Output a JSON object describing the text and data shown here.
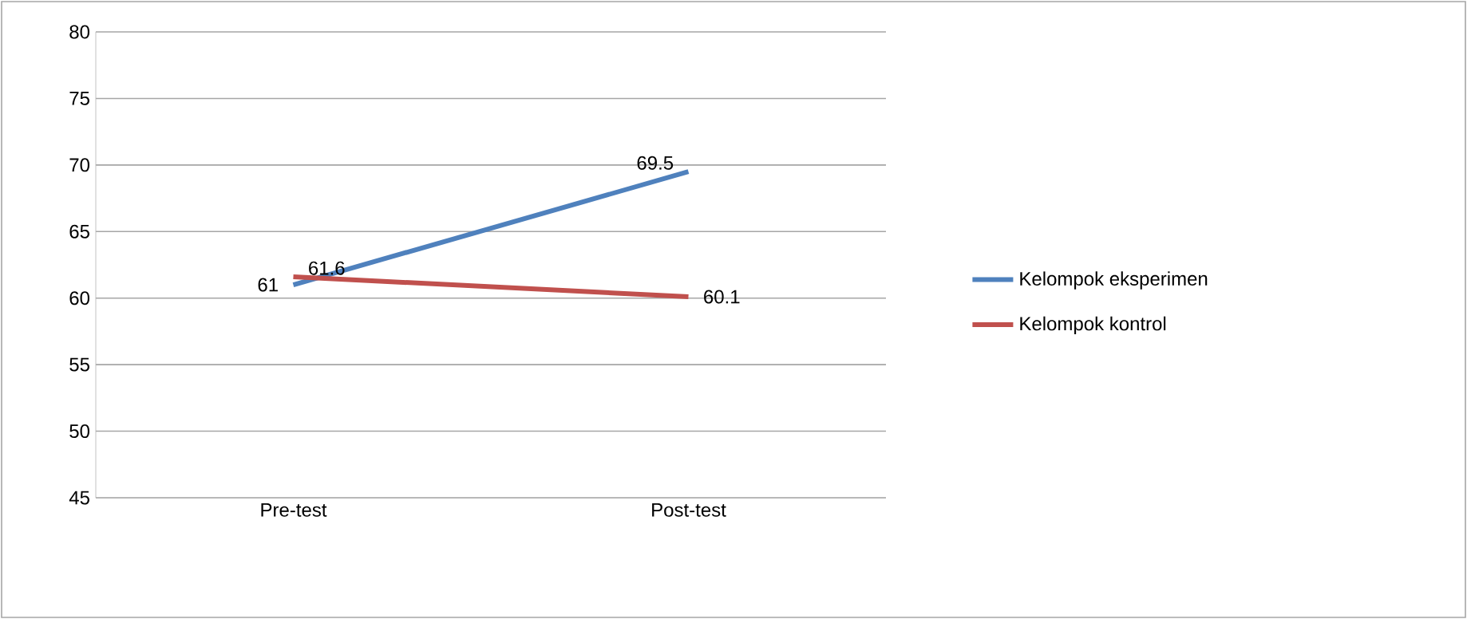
{
  "chart_data": {
    "type": "line",
    "categories": [
      "Pre-test",
      "Post-test"
    ],
    "series": [
      {
        "name": "Kelompok eksperimen",
        "color": "#4f81bd",
        "values": [
          61,
          69.5
        ]
      },
      {
        "name": "Kelompok kontrol",
        "color": "#c0504d",
        "values": [
          61.6,
          60.1
        ]
      }
    ],
    "ylim": [
      45,
      80
    ],
    "yticks": [
      45,
      50,
      55,
      60,
      65,
      70,
      75,
      80
    ],
    "grid": "y",
    "legend": "right",
    "data_labels": true,
    "marker": "none",
    "line_style": "solid"
  }
}
